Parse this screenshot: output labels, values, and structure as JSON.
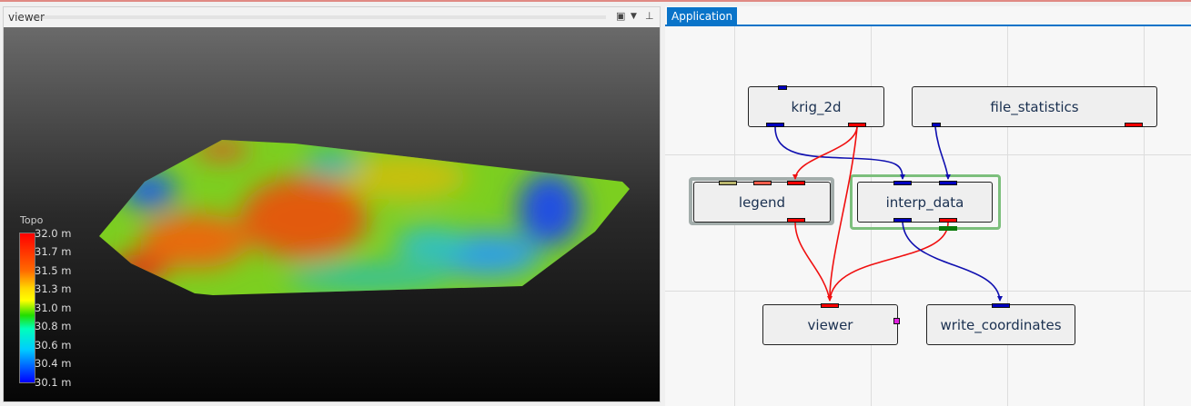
{
  "viewer_panel": {
    "title": "viewer",
    "icons": [
      "restore-icon",
      "dropdown-icon",
      "pin-icon"
    ]
  },
  "legend": {
    "title": "Topo",
    "ticks": [
      "32.0 m",
      "31.7 m",
      "31.5 m",
      "31.3 m",
      "31.0 m",
      "30.8 m",
      "30.6 m",
      "30.4 m",
      "30.1 m"
    ]
  },
  "app_panel": {
    "tab": "Application",
    "nodes": {
      "krig": "krig_2d",
      "file_stats": "file_statistics",
      "legend": "legend",
      "interp": "interp_data",
      "viewer": "viewer",
      "write": "write_coordinates"
    }
  },
  "colors": {
    "port_blue": "#0000c0",
    "port_red": "#ff0000",
    "accent": "#0a74c9",
    "selected_green": "#7cbf7c"
  }
}
